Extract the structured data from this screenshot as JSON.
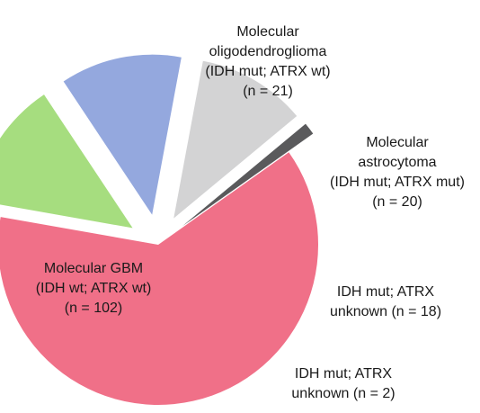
{
  "chart_data": {
    "type": "pie",
    "title": "",
    "slices": [
      {
        "label_lines": [
          "Molecular",
          "oligodendroglioma",
          "(IDH mut; ATRX wt)",
          "(n = 21)"
        ],
        "value": 21,
        "color": "#a6dd7f"
      },
      {
        "label_lines": [
          "Molecular",
          "astrocytoma",
          "(IDH mut; ATRX mut)",
          "(n = 20)"
        ],
        "value": 20,
        "color": "#94a8de"
      },
      {
        "label_lines": [
          "IDH mut; ATRX",
          "unknown (n = 18)"
        ],
        "value": 18,
        "color": "#d3d3d4"
      },
      {
        "label_lines": [
          "IDH mut; ATRX",
          "unknown (n = 2)"
        ],
        "value": 2,
        "color": "#5a5a5c"
      },
      {
        "label_lines": [
          "Molecular GBM",
          "(IDH wt; ATRX wt)",
          "(n = 102)"
        ],
        "value": 102,
        "color": "#f07088"
      }
    ]
  }
}
